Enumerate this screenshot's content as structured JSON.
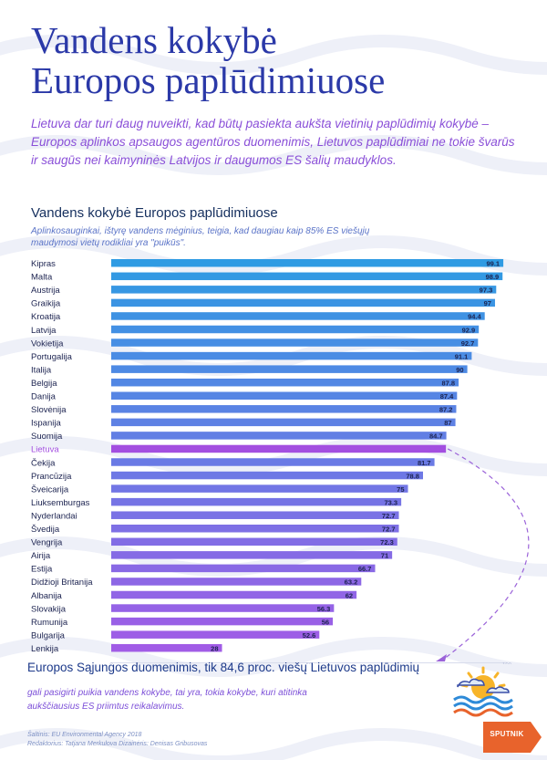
{
  "header": {
    "title_line1": "Vandens kokybė",
    "title_line2": "Europos paplūdimiuose",
    "intro": "Lietuva dar turi daug nuveikti, kad būtų pasiekta aukšta vietinių paplūdimių kokybė – Europos aplinkos apsaugos agentūros duomenimis, Lietuvos paplūdimiai ne tokie švarūs ir saugūs nei kaimyninės Latvijos ir daugumos ES šalių maudyklos."
  },
  "chart_data": {
    "type": "bar",
    "orientation": "horizontal",
    "title": "Vandens kokybė Europos paplūdimiuose",
    "subtitle": "Aplinkosauginkai, ištyrę vandens mėginius, teigia, kad daugiau kaip 85% ES viešųjų maudymosi vietų rodikliai yra \"puikūs\".",
    "categories": [
      "Kipras",
      "Malta",
      "Austrija",
      "Graikija",
      "Kroatija",
      "Latvija",
      "Vokietija",
      "Portugalija",
      "Italija",
      "Belgija",
      "Danija",
      "Slovėnija",
      "Ispanija",
      "Suomija",
      "Lietuva",
      "Čekija",
      "Prancūzija",
      "Šveicarija",
      "Liuksemburgas",
      "Nyderlandai",
      "Švedija",
      "Vengrija",
      "Airija",
      "Estija",
      "Didžioji Britanija",
      "Albanija",
      "Slovakija",
      "Rumunija",
      "Bulgarija",
      "Lenkija"
    ],
    "values": [
      99.1,
      98.9,
      97.3,
      97,
      94.4,
      92.9,
      92.7,
      91.1,
      90,
      87.8,
      87.4,
      87.2,
      87,
      84.7,
      84.6,
      81.7,
      78.8,
      75,
      73.3,
      72.7,
      72.7,
      72.3,
      71,
      66.7,
      63.2,
      62,
      56.3,
      56,
      52.6,
      28
    ],
    "value_labels": [
      "99.1",
      "98.9",
      "97.3",
      "97",
      "94.4",
      "92.9",
      "92.7",
      "91.1",
      "90",
      "87.8",
      "87.4",
      "87.2",
      "87",
      "84.7",
      "84.6",
      "81.7",
      "78.8",
      "75",
      "73.3",
      "72.7",
      "72.7",
      "72.3",
      "71",
      "66.7",
      "63.2",
      "62",
      "56.3",
      "56",
      "52.6",
      "28"
    ],
    "highlight": "Lietuva",
    "xlim": [
      0,
      100
    ],
    "x_ticks": [
      "0",
      "50",
      "100"
    ],
    "grid": false,
    "colors": {
      "top_bar": "#2f9be3",
      "bottom_bar": "#a15ce6",
      "highlight": "#a34fe0",
      "label": "#1c2350",
      "arrow": "#9b63d9"
    }
  },
  "footer": {
    "headline": "Europos Sąjungos duomenimis, tik 84,6 proc. viešų Lietuvos paplūdimių",
    "text": "gali pasigirti puikia vandens kokybe, tai yra, tokia kokybe, kuri atitinka aukščiausius ES priimtus reikalavimus.",
    "source": "Šaltinis: EU Environmental Agency 2018",
    "credits": "Redaktorius: Tatjana Merkulova Dizainėris: Denisas Gribusovas",
    "logo": "SPUTNIK",
    "icons": [
      "beach-sun-icon",
      "sputnik-logo"
    ]
  }
}
